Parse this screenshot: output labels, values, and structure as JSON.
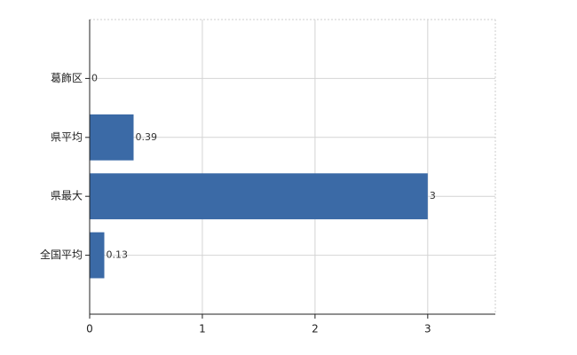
{
  "chart_data": {
    "type": "bar",
    "orientation": "horizontal",
    "categories": [
      "葛飾区",
      "県平均",
      "県最大",
      "全国平均"
    ],
    "values": [
      0,
      0.39,
      3,
      0.13
    ],
    "color": "#3b6aa6",
    "xlim": [
      0,
      3.6
    ],
    "xticks": [
      0,
      1,
      2,
      3
    ],
    "grid": true
  }
}
